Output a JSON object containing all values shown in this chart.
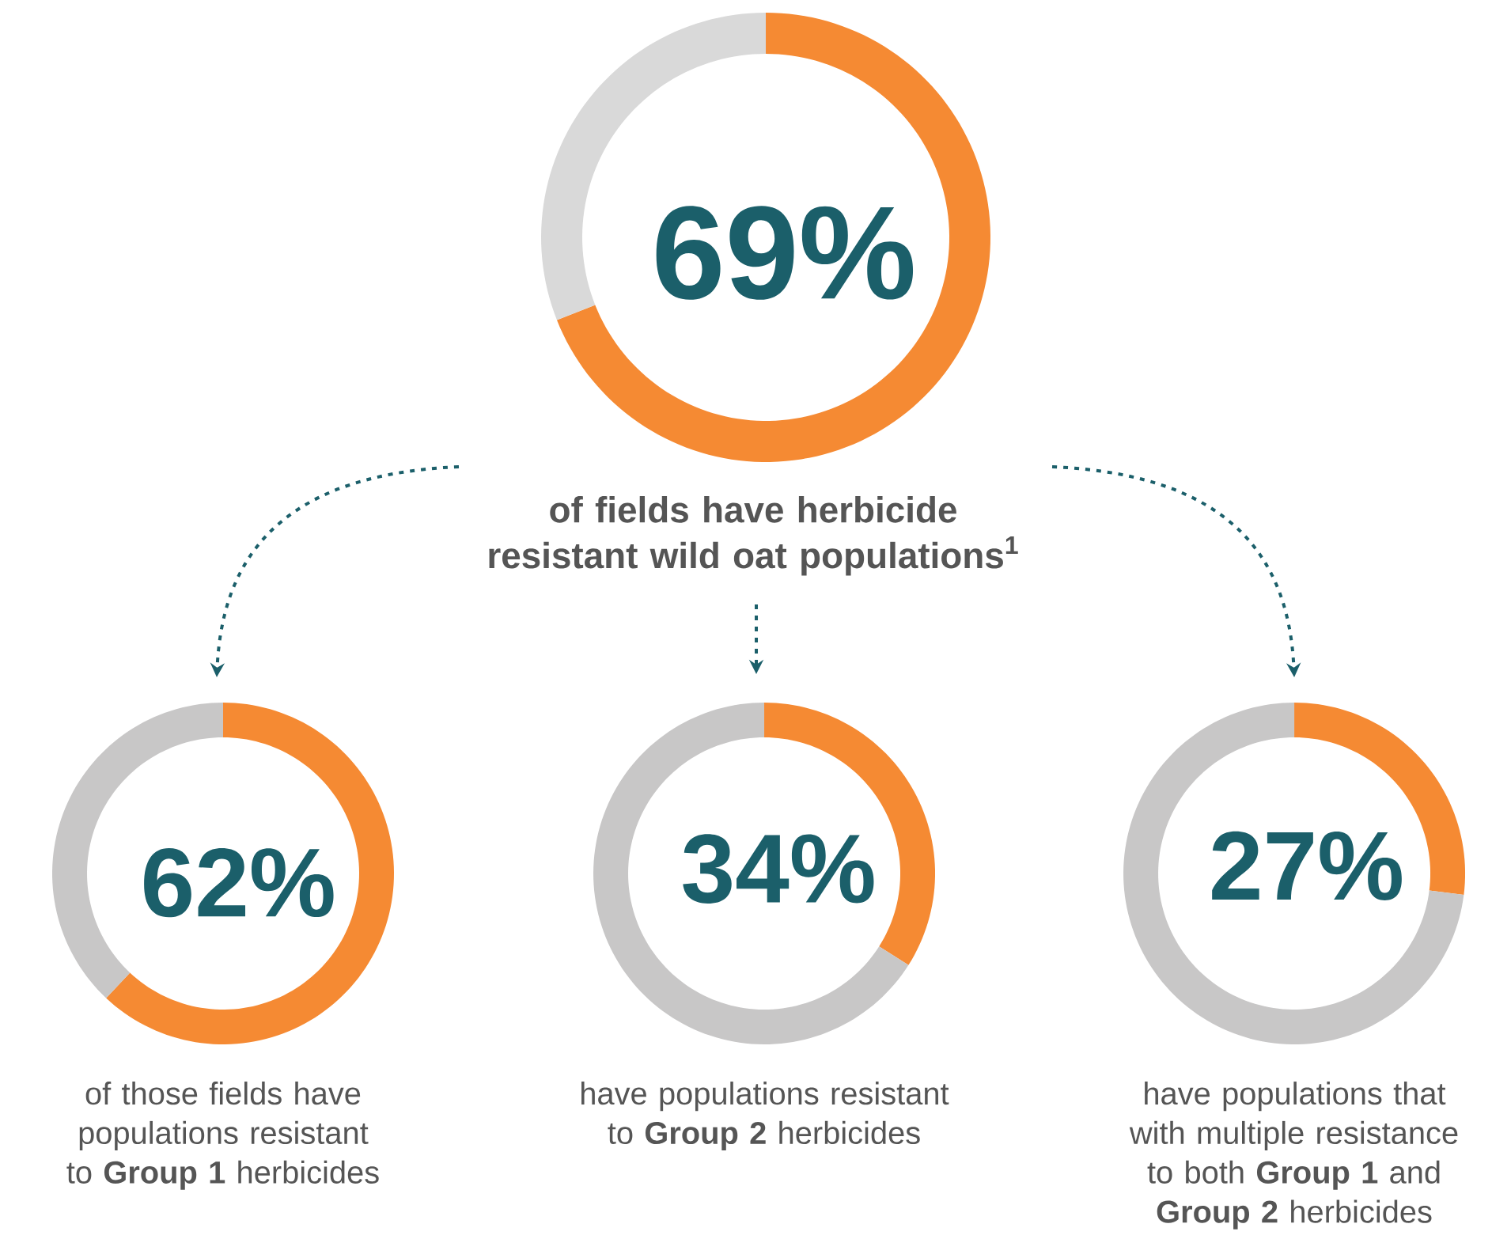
{
  "chart_data": [
    {
      "type": "donut",
      "categories": [
        null,
        null
      ],
      "values": [
        69,
        31
      ],
      "colors": [
        "#f58a33",
        "#d9d9d9"
      ],
      "value_labels": [
        "69%",
        null
      ],
      "title": "**of fields have herbicide resistant wild oat populations$^{1}$**"
    },
    {
      "type": "donut",
      "categories": [
        null,
        null
      ],
      "values": [
        62,
        38
      ],
      "colors": [
        "#f58a33",
        "#c8c7c7"
      ],
      "value_labels": [
        "62%",
        null
      ],
      "title": "of those fields have populations resistant to **Group 1** herbicides"
    },
    {
      "type": "donut",
      "categories": [
        null,
        null
      ],
      "values": [
        34,
        66
      ],
      "colors": [
        "#f58a33",
        "#c8c7c7"
      ],
      "value_labels": [
        "34%",
        null
      ],
      "title": "have populations resistant to **Group 2** herbicides"
    },
    {
      "type": "donut",
      "categories": [
        null,
        null
      ],
      "values": [
        27,
        73
      ],
      "colors": [
        "#f58a33",
        "#c8c7c7"
      ],
      "value_labels": [
        "27%",
        null
      ],
      "title": "have populations that with multiple resistance to both **Group 1** and **Group 2** herbicides"
    }
  ]
}
